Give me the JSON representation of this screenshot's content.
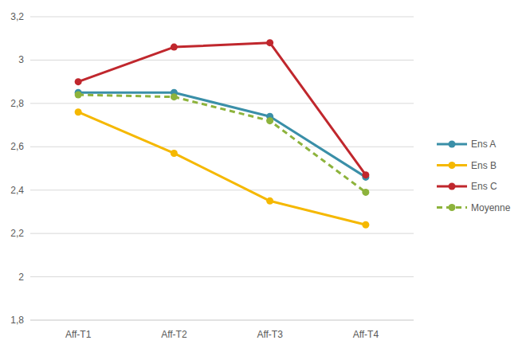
{
  "chart_data": {
    "type": "line",
    "categories": [
      "Aff-T1",
      "Aff-T2",
      "Aff-T3",
      "Aff-T4"
    ],
    "series": [
      {
        "name": "Ens A",
        "color": "#3a8fa8",
        "marker": "circle",
        "line_style": "solid",
        "values": [
          2.85,
          2.85,
          2.74,
          2.46
        ]
      },
      {
        "name": "Ens B",
        "color": "#f5b800",
        "marker": "circle",
        "line_style": "solid",
        "values": [
          2.76,
          2.57,
          2.35,
          2.24
        ]
      },
      {
        "name": "Ens C",
        "color": "#c0272d",
        "marker": "circle",
        "line_style": "solid",
        "values": [
          2.9,
          3.06,
          3.08,
          2.47
        ]
      },
      {
        "name": "Moyenne",
        "color": "#8db33c",
        "marker": "circle",
        "line_style": "dashed",
        "values": [
          2.84,
          2.83,
          2.72,
          2.39
        ]
      }
    ],
    "ylim": [
      1.8,
      3.2
    ],
    "yticks": [
      {
        "value": 1.8,
        "label": "1,8"
      },
      2,
      {
        "value": 2.2,
        "label": "2,2"
      },
      {
        "value": 2.4,
        "label": "2,4"
      },
      {
        "value": 2.6,
        "label": "2,6"
      },
      {
        "value": 2.8,
        "label": "2,8"
      },
      3,
      {
        "value": 3.2,
        "label": "3,2"
      }
    ],
    "grid": true,
    "legend": "right"
  }
}
